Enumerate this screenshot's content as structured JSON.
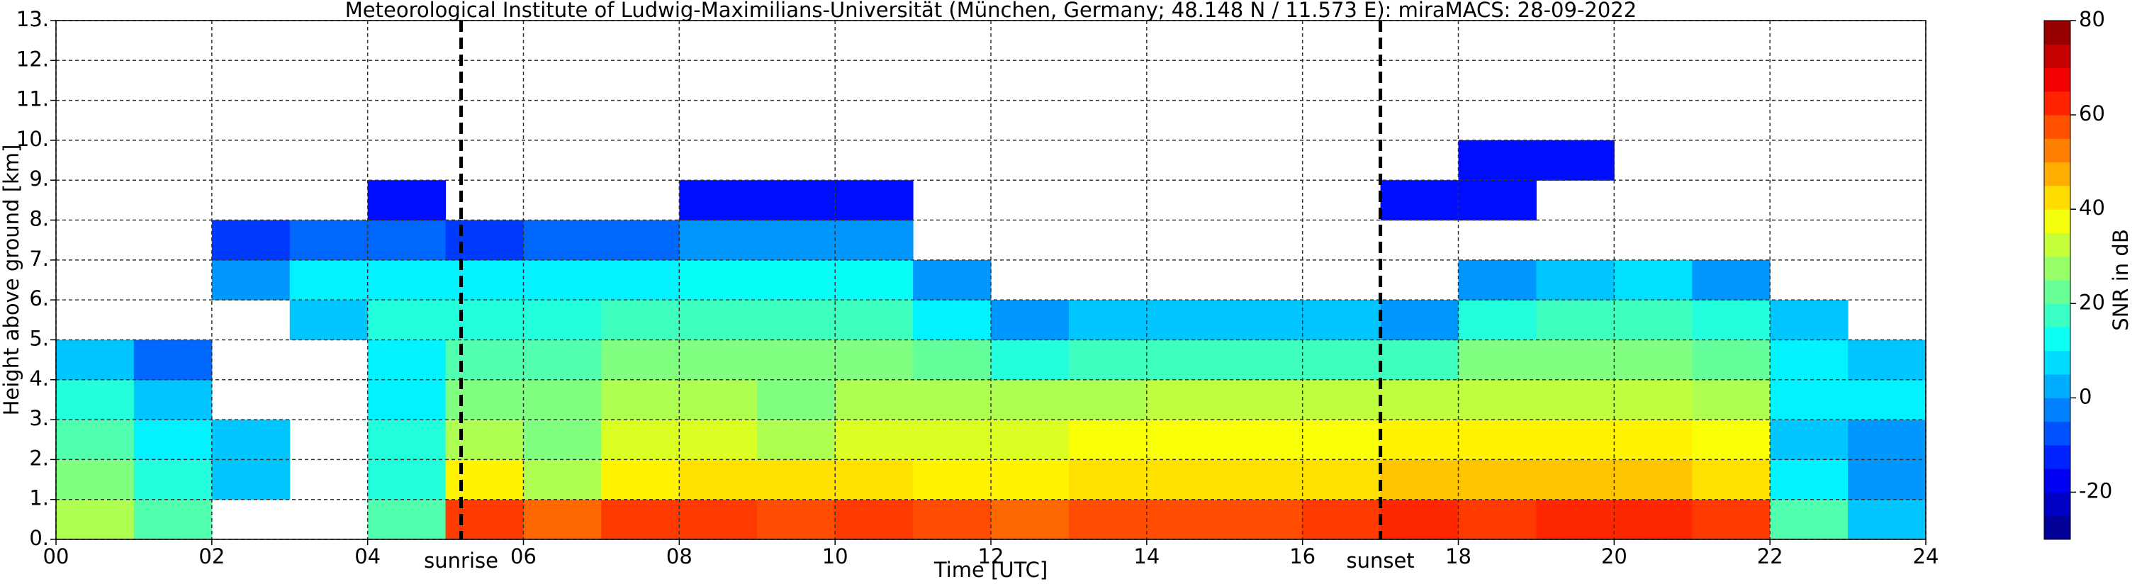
{
  "chart_data": {
    "type": "heatmap",
    "title": "Meteorological Institute of Ludwig-Maximilians-Universität (München, Germany; 48.148 N / 11.573 E):    miraMACS: 28-09-2022",
    "xlabel": "Time [UTC]",
    "ylabel": "Height above ground [km]",
    "colorbar_label": "SNR in dB",
    "colormap": "jet",
    "grid": true,
    "xlim": [
      0,
      24
    ],
    "ylim": [
      0,
      13
    ],
    "clim": [
      -30,
      80
    ],
    "xticks": [
      {
        "value": 0,
        "label": "00"
      },
      {
        "value": 2,
        "label": "02"
      },
      {
        "value": 4,
        "label": "04"
      },
      {
        "value": 6,
        "label": "06"
      },
      {
        "value": 8,
        "label": "08"
      },
      10,
      12,
      14,
      16,
      18,
      20,
      22,
      24
    ],
    "yticks": [
      {
        "value": 0,
        "label": "0."
      },
      {
        "value": 1,
        "label": "1."
      },
      {
        "value": 2,
        "label": "2."
      },
      {
        "value": 3,
        "label": "3."
      },
      {
        "value": 4,
        "label": "4."
      },
      {
        "value": 5,
        "label": "5."
      },
      {
        "value": 6,
        "label": "6."
      },
      {
        "value": 7,
        "label": "7."
      },
      {
        "value": 8,
        "label": "8."
      },
      {
        "value": 9,
        "label": "9."
      },
      {
        "value": 10,
        "label": "10."
      },
      {
        "value": 11,
        "label": "11."
      },
      {
        "value": 12,
        "label": "12."
      },
      {
        "value": 13,
        "label": "13."
      }
    ],
    "cticks": [
      -20,
      0,
      20,
      40,
      60,
      80
    ],
    "xbins": [
      0,
      1,
      2,
      3,
      4,
      5,
      6,
      7,
      8,
      9,
      10,
      11,
      12,
      13,
      14,
      15,
      16,
      17,
      18,
      19,
      20,
      21,
      22,
      23,
      24
    ],
    "ybins": [
      0,
      1,
      2,
      3,
      4,
      5,
      6,
      7,
      8,
      9,
      10,
      11,
      12,
      13
    ],
    "values": [
      [
        30,
        20,
        null,
        null,
        20,
        60,
        55,
        60,
        60,
        58,
        60,
        58,
        55,
        58,
        58,
        58,
        60,
        62,
        60,
        62,
        62,
        60,
        20,
        5
      ],
      [
        25,
        15,
        5,
        null,
        15,
        40,
        30,
        40,
        42,
        42,
        42,
        40,
        40,
        42,
        42,
        42,
        42,
        45,
        45,
        45,
        45,
        42,
        10,
        0
      ],
      [
        20,
        10,
        5,
        null,
        15,
        30,
        25,
        35,
        35,
        30,
        35,
        35,
        35,
        38,
        38,
        38,
        38,
        40,
        40,
        40,
        40,
        38,
        5,
        0
      ],
      [
        15,
        5,
        null,
        null,
        10,
        25,
        25,
        30,
        30,
        25,
        30,
        30,
        30,
        30,
        32,
        32,
        32,
        32,
        32,
        32,
        32,
        30,
        10,
        10
      ],
      [
        5,
        -5,
        null,
        null,
        10,
        20,
        20,
        25,
        25,
        25,
        25,
        22,
        15,
        18,
        18,
        18,
        18,
        18,
        25,
        25,
        25,
        22,
        10,
        5
      ],
      [
        null,
        null,
        null,
        5,
        15,
        15,
        15,
        18,
        18,
        18,
        18,
        10,
        0,
        5,
        5,
        5,
        5,
        0,
        15,
        18,
        18,
        15,
        5,
        null
      ],
      [
        null,
        null,
        0,
        10,
        10,
        10,
        10,
        10,
        12,
        12,
        12,
        0,
        null,
        null,
        null,
        null,
        null,
        null,
        0,
        5,
        8,
        0,
        null,
        null
      ],
      [
        null,
        null,
        -10,
        -5,
        -5,
        -10,
        -5,
        -5,
        0,
        0,
        0,
        null,
        null,
        null,
        null,
        null,
        null,
        null,
        null,
        null,
        null,
        null,
        null,
        null
      ],
      [
        null,
        null,
        null,
        null,
        -15,
        null,
        null,
        null,
        -15,
        -15,
        -15,
        null,
        null,
        null,
        null,
        null,
        null,
        -15,
        -15,
        null,
        null,
        null,
        null,
        null
      ],
      [
        null,
        null,
        null,
        null,
        null,
        null,
        null,
        null,
        null,
        null,
        null,
        null,
        null,
        null,
        null,
        null,
        null,
        null,
        -15,
        -15,
        null,
        null,
        null,
        null
      ],
      [
        null,
        null,
        null,
        null,
        null,
        null,
        null,
        null,
        null,
        null,
        null,
        null,
        null,
        null,
        null,
        null,
        null,
        null,
        null,
        null,
        null,
        null,
        null,
        null
      ],
      [
        null,
        null,
        null,
        null,
        null,
        null,
        null,
        null,
        null,
        null,
        null,
        null,
        null,
        null,
        null,
        null,
        null,
        null,
        null,
        null,
        null,
        null,
        null,
        null
      ],
      [
        null,
        null,
        null,
        null,
        null,
        null,
        null,
        null,
        null,
        null,
        null,
        null,
        null,
        null,
        null,
        null,
        null,
        null,
        null,
        null,
        null,
        null,
        null,
        null
      ]
    ],
    "annotations": [
      {
        "x": 5.2,
        "text": "sunrise"
      },
      {
        "x": 17.0,
        "text": "sunset"
      }
    ]
  }
}
